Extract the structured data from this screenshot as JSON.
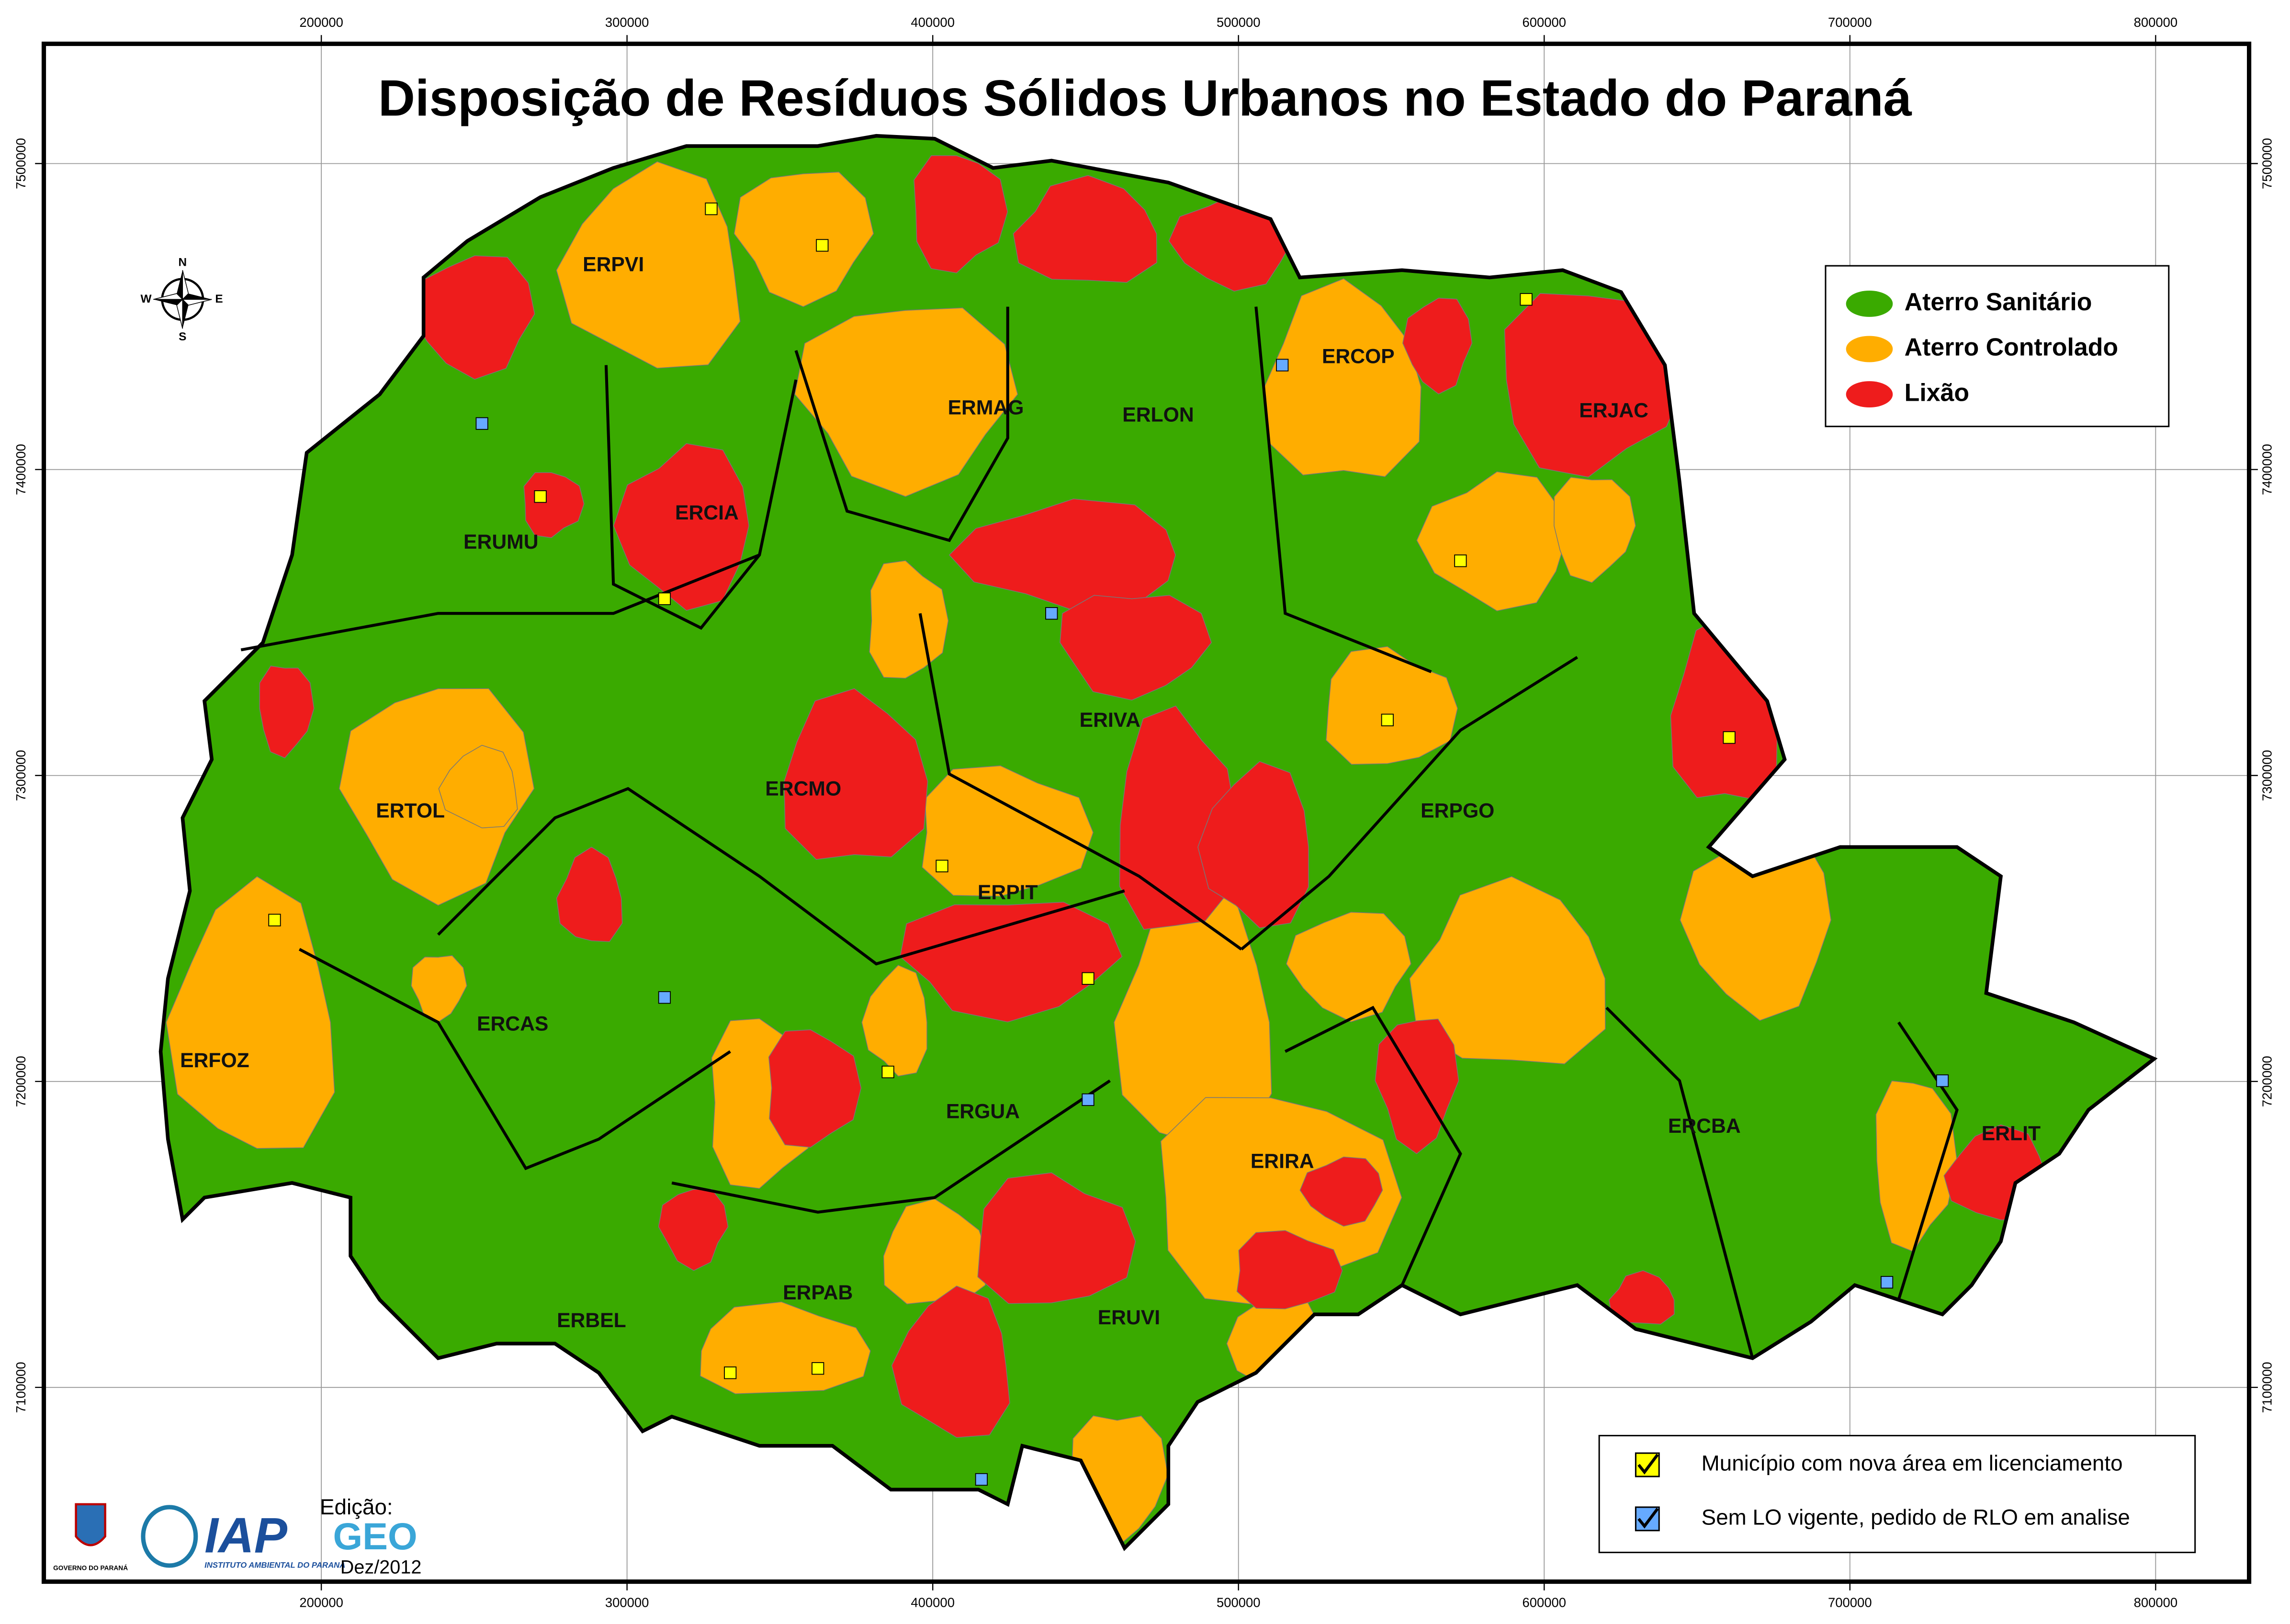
{
  "title": "Disposição de Resíduos Sólidos Urbanos no Estado do Paraná",
  "legend": {
    "categories": [
      {
        "label": "Aterro Sanitário",
        "color": "#3aaa00"
      },
      {
        "label": "Aterro Controlado",
        "color": "#ffad00"
      },
      {
        "label": "Lixão",
        "color": "#ee1c1c"
      }
    ],
    "symbols": [
      {
        "label": "Município com nova área em licenciamento",
        "color": "#ffff00"
      },
      {
        "label": "Sem LO vigente, pedido de RLO em analise",
        "color": "#66aaff"
      }
    ]
  },
  "grid": {
    "x_ticks": [
      200000,
      300000,
      400000,
      500000,
      600000,
      700000,
      800000
    ],
    "y_ticks": [
      7100000,
      7200000,
      7300000,
      7400000,
      7500000
    ]
  },
  "compass": {
    "n": "N",
    "s": "S",
    "e": "E",
    "w": "W"
  },
  "regions": [
    "ERPVI",
    "ERCOP",
    "ERJAC",
    "ERMAG",
    "ERLON",
    "ERCIA",
    "ERUMU",
    "ERTOL",
    "ERCMO",
    "ERIVA",
    "ERPGO",
    "ERPIT",
    "ERCAS",
    "ERFOZ",
    "ERGUA",
    "ERIRA",
    "ERCBA",
    "ERLIT",
    "ERPAB",
    "ERBEL",
    "ERUVI"
  ],
  "credits": {
    "government": "GOVERNO DO PARANÁ",
    "agency": "IAP",
    "agency_name": "INSTITUTO AMBIENTAL DO PARANÁ",
    "edition": "Edição:",
    "geo": "GEO",
    "date": "Dez/2012"
  }
}
